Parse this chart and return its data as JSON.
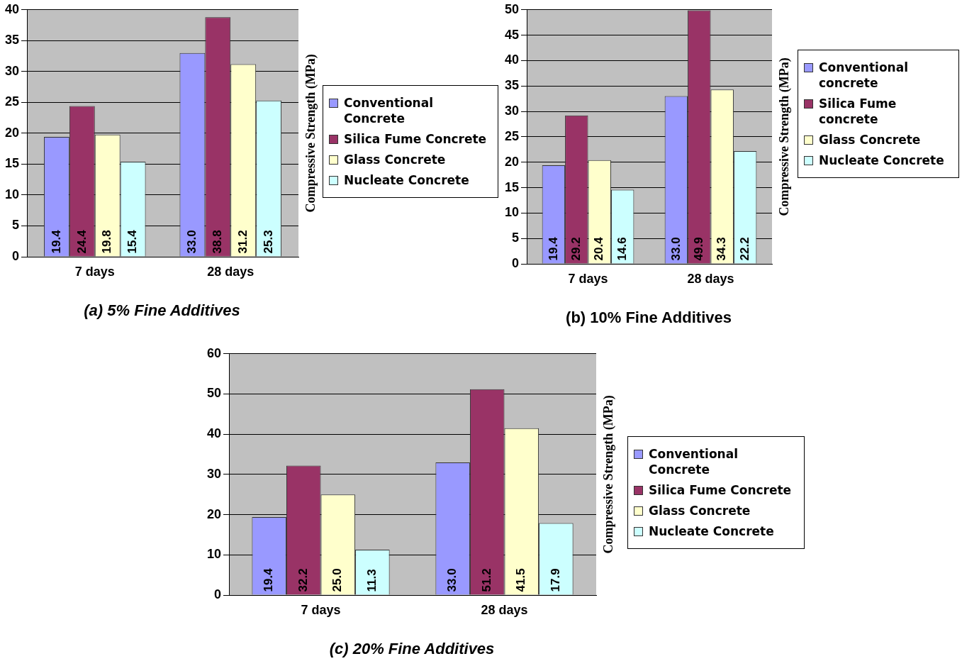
{
  "chart_data": [
    {
      "type": "bar",
      "title": "(a) 5% Fine Additives",
      "ylabel": "Compressive Strength (MPa)",
      "categories": [
        "7 days",
        "28 days"
      ],
      "ylim": [
        0,
        40
      ],
      "yticks": [
        0,
        5,
        10,
        15,
        20,
        25,
        30,
        35,
        40
      ],
      "grid": "y",
      "legend": "right",
      "series": [
        {
          "name": "Conventional Concrete",
          "color": "#9999ff",
          "values": [
            19.4,
            33.0
          ],
          "value_labels": [
            "19.4",
            "33.0"
          ]
        },
        {
          "name": "Silica Fume Concrete",
          "color": "#993366",
          "values": [
            24.4,
            38.8
          ],
          "value_labels": [
            "24.4",
            "38.8"
          ]
        },
        {
          "name": "Glass Concrete",
          "color": "#ffffcc",
          "values": [
            19.8,
            31.2
          ],
          "value_labels": [
            "19.8",
            "31.2"
          ]
        },
        {
          "name": "Nucleate Concrete",
          "color": "#ccffff",
          "values": [
            15.4,
            25.3
          ],
          "value_labels": [
            "15.4",
            "25.3"
          ]
        }
      ]
    },
    {
      "type": "bar",
      "title": "(b) 10% Fine Additives",
      "ylabel": "Compressive Strength (MPa)",
      "categories": [
        "7 days",
        "28 days"
      ],
      "ylim": [
        0,
        50
      ],
      "yticks": [
        0,
        5,
        10,
        15,
        20,
        25,
        30,
        35,
        40,
        45,
        50
      ],
      "grid": "y",
      "legend": "right",
      "series": [
        {
          "name": "Conventional concrete",
          "color": "#9999ff",
          "values": [
            19.4,
            33.0
          ],
          "value_labels": [
            "19.4",
            "33.0"
          ]
        },
        {
          "name": "Silica Fume concrete",
          "color": "#993366",
          "values": [
            29.2,
            49.9
          ],
          "value_labels": [
            "29.2",
            "49.9"
          ]
        },
        {
          "name": "Glass Concrete",
          "color": "#ffffcc",
          "values": [
            20.4,
            34.3
          ],
          "value_labels": [
            "20.4",
            "34.3"
          ]
        },
        {
          "name": "Nucleate Concrete",
          "color": "#ccffff",
          "values": [
            14.6,
            22.2
          ],
          "value_labels": [
            "14.6",
            "22.2"
          ]
        }
      ]
    },
    {
      "type": "bar",
      "title": "(c) 20% Fine Additives",
      "ylabel": "Compressive Strength (MPa)",
      "categories": [
        "7 days",
        "28 days"
      ],
      "ylim": [
        0,
        60
      ],
      "yticks": [
        0,
        10,
        20,
        30,
        40,
        50,
        60
      ],
      "grid": "y",
      "legend": "right",
      "series": [
        {
          "name": "Conventional Concrete",
          "color": "#9999ff",
          "values": [
            19.4,
            33.0
          ],
          "value_labels": [
            "19.4",
            "33.0"
          ]
        },
        {
          "name": "Silica Fume Concrete",
          "color": "#993366",
          "values": [
            32.2,
            51.2
          ],
          "value_labels": [
            "32.2",
            "51.2"
          ]
        },
        {
          "name": "Glass Concrete",
          "color": "#ffffcc",
          "values": [
            25.0,
            41.5
          ],
          "value_labels": [
            "25.0",
            "41.5"
          ]
        },
        {
          "name": "Nucleate Concrete",
          "color": "#ccffff",
          "values": [
            11.3,
            17.9
          ],
          "value_labels": [
            "11.3",
            "17.9"
          ]
        }
      ]
    }
  ]
}
